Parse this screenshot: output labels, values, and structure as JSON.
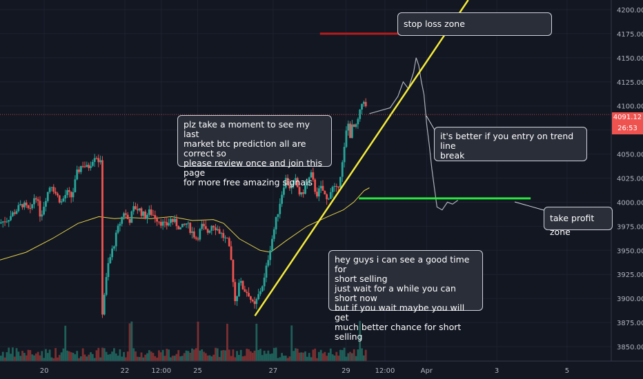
{
  "chart_data": {
    "type": "candlestick",
    "y_ticks": [
      3850,
      3875,
      3900,
      3925,
      3950,
      3975,
      4000,
      4025,
      4050,
      4075,
      4100,
      4125,
      4150,
      4175,
      4200
    ],
    "y_tick_labels": [
      "3850.00",
      "3875.00",
      "3900.00",
      "3925.00",
      "3950.00",
      "3975.00",
      "4000.00",
      "4025.00",
      "4050.00",
      "4075.00",
      "4100.00",
      "4125.00",
      "4150.00",
      "4175.00",
      "4200.00"
    ],
    "ylim": [
      3835,
      4210
    ],
    "x_ticks": [
      {
        "label": "20",
        "x": 0.17
      },
      {
        "label": "22",
        "x": 0.48
      },
      {
        "label": "12:00",
        "x": 0.62
      },
      {
        "label": "25",
        "x": 0.76
      },
      {
        "label": "27",
        "x": 1.05
      },
      {
        "label": "29",
        "x": 1.33
      },
      {
        "label": "12:00",
        "x": 1.48
      },
      {
        "label": "Apr",
        "x": 1.64
      },
      {
        "label": "3",
        "x": 1.91
      },
      {
        "label": "5",
        "x": 2.18
      }
    ],
    "xlim": [
      0,
      2.35
    ],
    "current_price": 4091.12,
    "current_price_label": "4091.12",
    "countdown_label": "26:53",
    "series": [
      {
        "kind": "price",
        "points": [
          [
            0.0,
            3978
          ],
          [
            0.03,
            3982
          ],
          [
            0.06,
            3990
          ],
          [
            0.09,
            3998
          ],
          [
            0.12,
            3990
          ],
          [
            0.14,
            4010
          ],
          [
            0.16,
            3985
          ],
          [
            0.18,
            4005
          ],
          [
            0.2,
            4020
          ],
          [
            0.22,
            4008
          ],
          [
            0.24,
            4000
          ],
          [
            0.26,
            4010
          ],
          [
            0.28,
            4005
          ],
          [
            0.3,
            4030
          ],
          [
            0.32,
            4040
          ],
          [
            0.34,
            4035
          ],
          [
            0.36,
            4045
          ],
          [
            0.37,
            4050
          ],
          [
            0.38,
            4045
          ],
          [
            0.39,
            4040
          ],
          [
            0.395,
            3880
          ],
          [
            0.405,
            3905
          ],
          [
            0.42,
            3935
          ],
          [
            0.44,
            3955
          ],
          [
            0.46,
            3975
          ],
          [
            0.48,
            3990
          ],
          [
            0.5,
            3980
          ],
          [
            0.52,
            3995
          ],
          [
            0.54,
            3992
          ],
          [
            0.56,
            3985
          ],
          [
            0.58,
            3990
          ],
          [
            0.6,
            3985
          ],
          [
            0.62,
            3980
          ],
          [
            0.64,
            3975
          ],
          [
            0.66,
            3982
          ],
          [
            0.68,
            3978
          ],
          [
            0.7,
            3972
          ],
          [
            0.72,
            3978
          ],
          [
            0.74,
            3970
          ],
          [
            0.76,
            3962
          ],
          [
            0.78,
            3975
          ],
          [
            0.8,
            3968
          ],
          [
            0.82,
            3978
          ],
          [
            0.84,
            3972
          ],
          [
            0.86,
            3965
          ],
          [
            0.88,
            3958
          ],
          [
            0.895,
            3935
          ],
          [
            0.91,
            3890
          ],
          [
            0.92,
            3920
          ],
          [
            0.94,
            3910
          ],
          [
            0.96,
            3905
          ],
          [
            0.98,
            3890
          ],
          [
            1.0,
            3905
          ],
          [
            1.02,
            3920
          ],
          [
            1.04,
            3950
          ],
          [
            1.06,
            3975
          ],
          [
            1.08,
            4000
          ],
          [
            1.1,
            4025
          ],
          [
            1.12,
            4015
          ],
          [
            1.14,
            4022
          ],
          [
            1.16,
            4005
          ],
          [
            1.18,
            4018
          ],
          [
            1.2,
            4028
          ],
          [
            1.22,
            4008
          ],
          [
            1.24,
            4015
          ],
          [
            1.26,
            4002
          ],
          [
            1.28,
            4015
          ],
          [
            1.3,
            4012
          ],
          [
            1.32,
            4040
          ],
          [
            1.33,
            4060
          ],
          [
            1.34,
            4085
          ],
          [
            1.35,
            4070
          ],
          [
            1.36,
            4080
          ],
          [
            1.37,
            4075
          ],
          [
            1.38,
            4085
          ],
          [
            1.39,
            4095
          ],
          [
            1.4,
            4110
          ],
          [
            1.41,
            4098
          ]
        ]
      },
      {
        "kind": "projection",
        "points": [
          [
            1.42,
            4092
          ],
          [
            1.46,
            4095
          ],
          [
            1.5,
            4098
          ],
          [
            1.53,
            4110
          ],
          [
            1.55,
            4125
          ],
          [
            1.57,
            4118
          ],
          [
            1.59,
            4135
          ],
          [
            1.6,
            4150
          ],
          [
            1.61,
            4142
          ],
          [
            1.62,
            4125
          ],
          [
            1.63,
            4112
          ],
          [
            1.64,
            4082
          ],
          [
            1.65,
            4060
          ],
          [
            1.66,
            4035
          ],
          [
            1.67,
            4015
          ],
          [
            1.68,
            3995
          ],
          [
            1.7,
            3992
          ],
          [
            1.72,
            4000
          ],
          [
            1.74,
            3998
          ],
          [
            1.76,
            4002
          ]
        ]
      },
      {
        "kind": "moving_average",
        "points": [
          [
            0.0,
            3940
          ],
          [
            0.1,
            3948
          ],
          [
            0.2,
            3962
          ],
          [
            0.3,
            3978
          ],
          [
            0.38,
            3985
          ],
          [
            0.44,
            3983
          ],
          [
            0.5,
            3984
          ],
          [
            0.58,
            3983
          ],
          [
            0.66,
            3985
          ],
          [
            0.74,
            3981
          ],
          [
            0.82,
            3982
          ],
          [
            0.86,
            3978
          ],
          [
            0.92,
            3962
          ],
          [
            1.0,
            3950
          ],
          [
            1.04,
            3948
          ],
          [
            1.1,
            3960
          ],
          [
            1.18,
            3975
          ],
          [
            1.26,
            3985
          ],
          [
            1.32,
            3992
          ],
          [
            1.36,
            4000
          ],
          [
            1.4,
            4012
          ],
          [
            1.42,
            4015
          ]
        ]
      }
    ],
    "trend_line": [
      [
        0.98,
        3882
      ],
      [
        1.8,
        4210
      ]
    ],
    "stop_loss_line": {
      "x": [
        1.23,
        1.96
      ],
      "y": 4175
    },
    "take_profit_line": {
      "x": [
        1.38,
        2.04
      ],
      "y": 4004
    }
  },
  "notes": [
    {
      "id": "promo",
      "text": "plz take a moment to see my last\nmarket btc prediction all are correct so\nplease review once and join this page\nfor more free amazing signals"
    },
    {
      "id": "stop",
      "text": "stop loss zone"
    },
    {
      "id": "entry",
      "text": "it's better if you entry on trend line\nbreak"
    },
    {
      "id": "profit",
      "text": "take profit zone"
    },
    {
      "id": "short",
      "text": "hey guys i can see a good time for\nshort selling\njust wait for a while you can short now\nbut if you wait maybe you will get\nmuch better chance for short selling"
    }
  ],
  "colors": {
    "background": "#131722",
    "up": "#26a69a",
    "down": "#ef5350",
    "moving_average": "#e6d24a",
    "trend_line": "#f5eb3c",
    "stop_loss": "#b71c1c",
    "take_profit": "#27e83c",
    "projection": "#aeb2ba",
    "price_tag": "#ef5350"
  }
}
